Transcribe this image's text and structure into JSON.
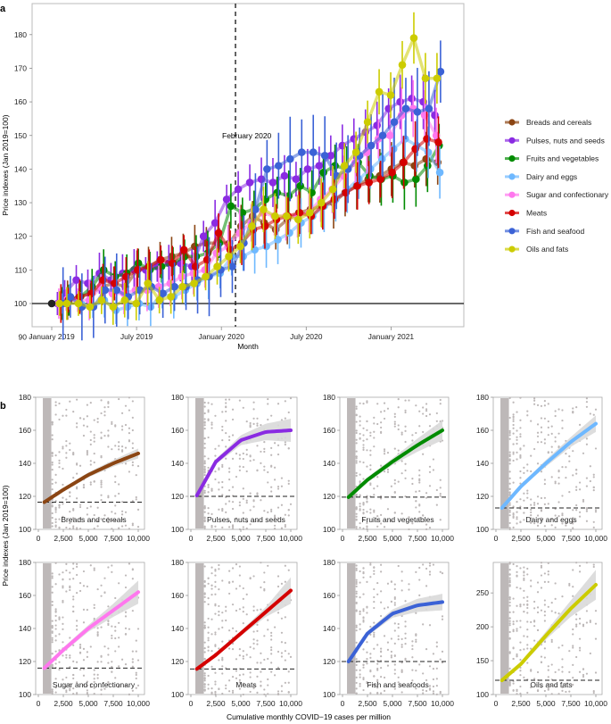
{
  "panel_labels": {
    "a": "a",
    "b": "b"
  },
  "chart_data": [
    {
      "type": "line",
      "panel": "a",
      "title": "",
      "xlabel": "Month",
      "ylabel": "Price indexes (Jan 2019=100)",
      "ylim": [
        82,
        189
      ],
      "yticks": [
        90,
        100,
        110,
        120,
        130,
        140,
        150,
        160,
        170,
        180
      ],
      "x_tick_labels": [
        {
          "label": "January 2019",
          "month_index": 0
        },
        {
          "label": "July 2019",
          "month_index": 6
        },
        {
          "label": "January 2020",
          "month_index": 12
        },
        {
          "label": "July 2020",
          "month_index": 18
        },
        {
          "label": "January 2021",
          "month_index": 24
        }
      ],
      "x_range_months": [
        -1.5,
        29
      ],
      "reference_line": {
        "y": 100
      },
      "annotation": {
        "label": "February 2020",
        "month_index": 13,
        "y": 150
      },
      "baseline_point": {
        "month_index": 0,
        "value": 100
      },
      "grid": false,
      "legend_position": "right",
      "series": [
        {
          "name": "Breads and cereals",
          "color": "#8B4513",
          "offset": 0.0,
          "values": [
            100,
            101,
            102,
            103,
            105,
            106,
            105,
            110,
            111,
            113,
            114,
            115,
            117,
            118,
            118,
            118,
            123,
            126,
            124,
            122,
            125,
            127,
            128,
            129,
            130,
            133,
            135,
            137,
            138,
            140,
            142,
            141,
            143,
            142
          ]
        },
        {
          "name": "Pulses, nuts and seeds",
          "color": "#8A2BE2",
          "offset": -0.2,
          "values": [
            100,
            103,
            107,
            106,
            109,
            107,
            109,
            110,
            110,
            111,
            112,
            112,
            111,
            120,
            124,
            131,
            134,
            136,
            137,
            136,
            138,
            137,
            140,
            141,
            144,
            147,
            149,
            151,
            153,
            158,
            160,
            161,
            160,
            156
          ]
        },
        {
          "name": "Fruits and vegetables",
          "color": "#008B00",
          "offset": 0.1,
          "values": [
            100,
            101,
            102,
            105,
            110,
            108,
            109,
            112,
            110,
            111,
            112,
            114,
            114,
            115,
            118,
            129,
            127,
            128,
            131,
            133,
            132,
            135,
            133,
            139,
            141,
            140,
            142,
            138,
            137,
            138,
            136,
            137,
            141,
            147
          ]
        },
        {
          "name": "Dairy and eggs",
          "color": "#6EB8FF",
          "offset": 0.15,
          "values": [
            100,
            102,
            100,
            99,
            101,
            98,
            99,
            100,
            99,
            103,
            102,
            104,
            106,
            108,
            109,
            114,
            114,
            116,
            117,
            119,
            121,
            124,
            126,
            129,
            131,
            134,
            137,
            140,
            143,
            146,
            149,
            147,
            145,
            139
          ]
        },
        {
          "name": "Sugar and confectionary",
          "color": "#FF77EE",
          "offset": -0.1,
          "values": [
            100,
            101,
            101,
            101,
            105,
            103,
            103,
            104,
            104,
            105,
            106,
            108,
            109,
            110,
            115,
            117,
            121,
            124,
            127,
            126,
            126,
            126,
            127,
            131,
            134,
            138,
            142,
            145,
            149,
            150,
            156,
            158,
            156,
            150
          ]
        },
        {
          "name": "Meats",
          "color": "#D40000",
          "offset": 0.05,
          "values": [
            100,
            101,
            102,
            103,
            107,
            106,
            108,
            110,
            111,
            113,
            112,
            116,
            111,
            113,
            121,
            116,
            118,
            122,
            123,
            125,
            126,
            127,
            126,
            129,
            131,
            133,
            135,
            136,
            137,
            139,
            142,
            146,
            149,
            148
          ]
        },
        {
          "name": "Fish and seafood",
          "color": "#3B62D6",
          "offset": 0.2,
          "values": [
            100,
            102,
            99,
            99,
            104,
            104,
            102,
            104,
            105,
            103,
            105,
            105,
            107,
            108,
            110,
            111,
            118,
            128,
            140,
            141,
            143,
            145,
            145,
            144,
            138,
            140,
            144,
            147,
            150,
            154,
            158,
            157,
            158,
            169
          ]
        },
        {
          "name": "Oils and fats",
          "color": "#CCCC00",
          "offset": -0.05,
          "values": [
            100,
            100,
            100,
            99,
            101,
            99,
            101,
            100,
            106,
            101,
            102,
            105,
            106,
            108,
            111,
            114,
            117,
            123,
            128,
            126,
            126,
            125,
            127,
            130,
            134,
            141,
            145,
            154,
            163,
            162,
            171,
            179,
            167,
            167
          ]
        }
      ]
    }
  ],
  "small_multiples": {
    "ylabel": "Price indexes (Jan 2019=100)",
    "xlabel": "Cumulative monthly COVID−19 cases per million",
    "x_ticks": [
      "0",
      "2,500",
      "5,000",
      "7,500",
      "10,000"
    ],
    "x_range": [
      0,
      10000
    ],
    "panels": [
      {
        "name": "Breads and cereals",
        "color": "#8B4513",
        "ylim": [
          100,
          180
        ],
        "yticks": [
          100,
          120,
          140,
          160,
          180
        ],
        "baseline": 116.5,
        "fit_x": [
          600,
          2500,
          5000,
          7500,
          10000
        ],
        "fit_y": [
          116.5,
          124,
          133,
          140,
          146
        ],
        "ci": [
          0.5,
          1,
          1.5,
          2,
          3
        ]
      },
      {
        "name": "Pulses, nuts and seeds",
        "color": "#8A2BE2",
        "ylim": [
          100,
          180
        ],
        "yticks": [
          100,
          120,
          140,
          160,
          180
        ],
        "baseline": 120,
        "fit_x": [
          600,
          2500,
          5000,
          7500,
          10000
        ],
        "fit_y": [
          120.5,
          141,
          154,
          159,
          160
        ],
        "ci": [
          0.5,
          1.5,
          3,
          5,
          7
        ]
      },
      {
        "name": "Fruits and vegetables",
        "color": "#008B00",
        "ylim": [
          100,
          180
        ],
        "yticks": [
          100,
          120,
          140,
          160,
          180
        ],
        "baseline": 119.5,
        "fit_x": [
          600,
          2500,
          5000,
          7500,
          10000
        ],
        "fit_y": [
          119.5,
          130,
          141,
          151,
          160
        ],
        "ci": [
          0.5,
          1.5,
          2,
          4,
          6
        ]
      },
      {
        "name": "Dairy and eggs",
        "color": "#6EB8FF",
        "ylim": [
          100,
          180
        ],
        "yticks": [
          100,
          120,
          140,
          160,
          180
        ],
        "baseline": 113,
        "fit_x": [
          600,
          2500,
          5000,
          7500,
          10000
        ],
        "fit_y": [
          113,
          126,
          140,
          153,
          164
        ],
        "ci": [
          0.5,
          1,
          2,
          3,
          5
        ]
      },
      {
        "name": "Sugar and confectionary",
        "color": "#FF77EE",
        "ylim": [
          100,
          180
        ],
        "yticks": [
          100,
          120,
          140,
          160,
          180
        ],
        "baseline": 116,
        "fit_x": [
          600,
          2500,
          5000,
          7500,
          10000
        ],
        "fit_y": [
          116,
          127,
          140,
          151,
          162
        ],
        "ci": [
          0.5,
          1.5,
          2,
          4,
          7
        ]
      },
      {
        "name": "Meats",
        "color": "#D40000",
        "ylim": [
          100,
          180
        ],
        "yticks": [
          100,
          120,
          140,
          160,
          180
        ],
        "baseline": 115.5,
        "fit_x": [
          600,
          2500,
          5000,
          7500,
          10000
        ],
        "fit_y": [
          115.5,
          124,
          137,
          150,
          163
        ],
        "ci": [
          0.5,
          1,
          1.5,
          3,
          8
        ]
      },
      {
        "name": "Fish and seafoods",
        "color": "#3B62D6",
        "ylim": [
          100,
          180
        ],
        "yticks": [
          100,
          120,
          140,
          160,
          180
        ],
        "baseline": 120,
        "fit_x": [
          600,
          2500,
          5000,
          7500,
          10000
        ],
        "fit_y": [
          120,
          137,
          149,
          154,
          156
        ],
        "ci": [
          0.5,
          1.5,
          2.5,
          4,
          5
        ]
      },
      {
        "name": "Oils and fats",
        "color": "#CCCC00",
        "ylim": [
          100,
          295
        ],
        "yticks": [
          100,
          150,
          200,
          250
        ],
        "baseline": 121,
        "fit_x": [
          600,
          2500,
          5000,
          7500,
          10000
        ],
        "fit_y": [
          121,
          145,
          187,
          227,
          262
        ],
        "ci": [
          1,
          3,
          6,
          12,
          22
        ]
      }
    ]
  }
}
